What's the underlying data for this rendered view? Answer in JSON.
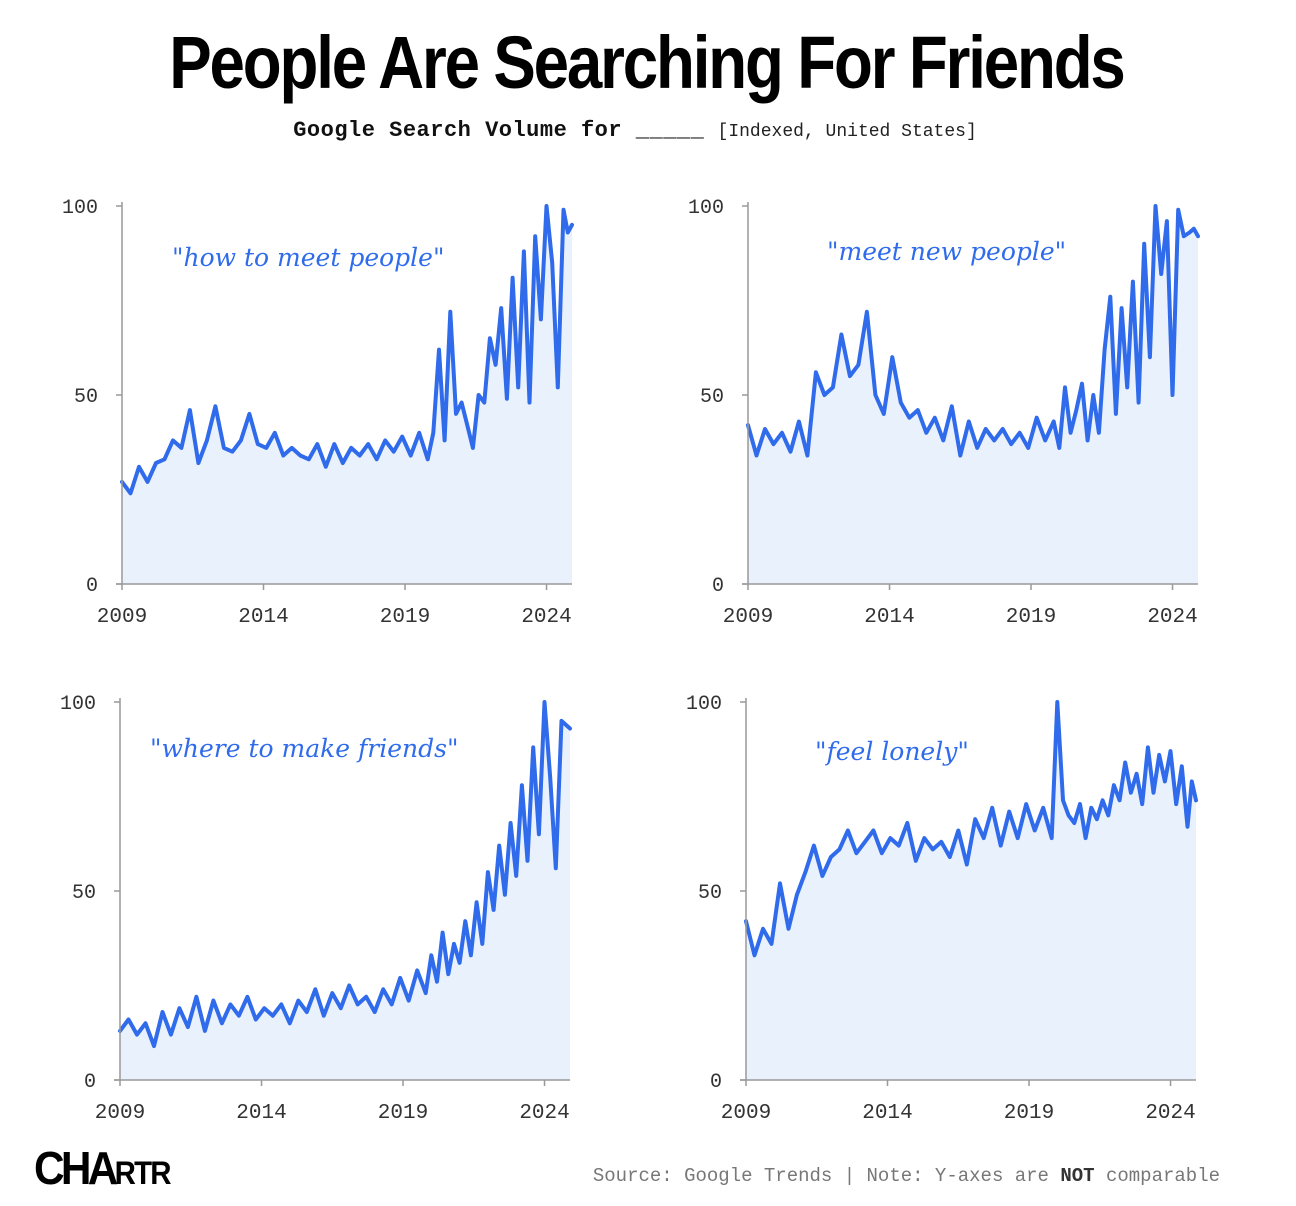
{
  "title": "People Are Searching For Friends",
  "subtitle": {
    "bold": "Google Search Volume for _____",
    "note": "[Indexed, United States]"
  },
  "footer": {
    "logo_big": "CHA",
    "logo_small": "RTR",
    "source_prefix": "Source: Google Trends | Note: Y-axes are ",
    "source_strong": "NOT",
    "source_suffix": " comparable"
  },
  "colors": {
    "line": "#2f6bea",
    "fill": "#e9f1fd",
    "axis": "#999999"
  },
  "chart_data": [
    {
      "type": "area",
      "label": "\"how to meet people\"",
      "xlim": [
        2009,
        2024.9
      ],
      "ylim": [
        0,
        100
      ],
      "xticks": [
        "2009",
        "2014",
        "2019",
        "2024"
      ],
      "yticks": [
        "0",
        "50",
        "100"
      ],
      "x": [
        2009,
        2009.3,
        2009.6,
        2009.9,
        2010.2,
        2010.5,
        2010.8,
        2011.1,
        2011.4,
        2011.7,
        2012.0,
        2012.3,
        2012.6,
        2012.9,
        2013.2,
        2013.5,
        2013.8,
        2014.1,
        2014.4,
        2014.7,
        2015.0,
        2015.3,
        2015.6,
        2015.9,
        2016.2,
        2016.5,
        2016.8,
        2017.1,
        2017.4,
        2017.7,
        2018.0,
        2018.3,
        2018.6,
        2018.9,
        2019.2,
        2019.5,
        2019.8,
        2020.0,
        2020.2,
        2020.4,
        2020.6,
        2020.8,
        2021.0,
        2021.2,
        2021.4,
        2021.6,
        2021.8,
        2022.0,
        2022.2,
        2022.4,
        2022.6,
        2022.8,
        2023.0,
        2023.2,
        2023.4,
        2023.6,
        2023.8,
        2024.0,
        2024.2,
        2024.4,
        2024.6,
        2024.75,
        2024.9
      ],
      "values": [
        27,
        24,
        31,
        27,
        32,
        33,
        38,
        36,
        46,
        32,
        38,
        47,
        36,
        35,
        38,
        45,
        37,
        36,
        40,
        34,
        36,
        34,
        33,
        37,
        31,
        37,
        32,
        36,
        34,
        37,
        33,
        38,
        35,
        39,
        34,
        40,
        33,
        40,
        62,
        38,
        72,
        45,
        48,
        42,
        36,
        50,
        48,
        65,
        58,
        73,
        49,
        81,
        52,
        88,
        48,
        92,
        70,
        100,
        85,
        52,
        99,
        93,
        95
      ]
    },
    {
      "type": "area",
      "label": "\"meet new people\"",
      "xlim": [
        2009,
        2024.9
      ],
      "ylim": [
        0,
        100
      ],
      "xticks": [
        "2009",
        "2014",
        "2019",
        "2024"
      ],
      "yticks": [
        "0",
        "50",
        "100"
      ],
      "x": [
        2009,
        2009.3,
        2009.6,
        2009.9,
        2010.2,
        2010.5,
        2010.8,
        2011.1,
        2011.4,
        2011.7,
        2012.0,
        2012.3,
        2012.6,
        2012.9,
        2013.2,
        2013.5,
        2013.8,
        2014.1,
        2014.4,
        2014.7,
        2015.0,
        2015.3,
        2015.6,
        2015.9,
        2016.2,
        2016.5,
        2016.8,
        2017.1,
        2017.4,
        2017.7,
        2018.0,
        2018.3,
        2018.6,
        2018.9,
        2019.2,
        2019.5,
        2019.8,
        2020.0,
        2020.2,
        2020.4,
        2020.6,
        2020.8,
        2021.0,
        2021.2,
        2021.4,
        2021.6,
        2021.8,
        2022.0,
        2022.2,
        2022.4,
        2022.6,
        2022.8,
        2023.0,
        2023.2,
        2023.4,
        2023.6,
        2023.8,
        2024.0,
        2024.2,
        2024.4,
        2024.6,
        2024.75,
        2024.9
      ],
      "values": [
        42,
        34,
        41,
        37,
        40,
        35,
        43,
        34,
        56,
        50,
        52,
        66,
        55,
        58,
        72,
        50,
        45,
        60,
        48,
        44,
        46,
        40,
        44,
        38,
        47,
        34,
        43,
        36,
        41,
        38,
        41,
        37,
        40,
        36,
        44,
        38,
        43,
        36,
        52,
        40,
        46,
        53,
        38,
        50,
        40,
        62,
        76,
        45,
        73,
        52,
        80,
        48,
        90,
        60,
        100,
        82,
        96,
        50,
        99,
        92,
        93,
        94,
        92
      ]
    },
    {
      "type": "area",
      "label": "\"where to make friends\"",
      "xlim": [
        2009,
        2024.9
      ],
      "ylim": [
        0,
        100
      ],
      "xticks": [
        "2009",
        "2014",
        "2019",
        "2024"
      ],
      "yticks": [
        "0",
        "50",
        "100"
      ],
      "x": [
        2009,
        2009.3,
        2009.6,
        2009.9,
        2010.2,
        2010.5,
        2010.8,
        2011.1,
        2011.4,
        2011.7,
        2012.0,
        2012.3,
        2012.6,
        2012.9,
        2013.2,
        2013.5,
        2013.8,
        2014.1,
        2014.4,
        2014.7,
        2015.0,
        2015.3,
        2015.6,
        2015.9,
        2016.2,
        2016.5,
        2016.8,
        2017.1,
        2017.4,
        2017.7,
        2018.0,
        2018.3,
        2018.6,
        2018.9,
        2019.2,
        2019.5,
        2019.8,
        2020.0,
        2020.2,
        2020.4,
        2020.6,
        2020.8,
        2021.0,
        2021.2,
        2021.4,
        2021.6,
        2021.8,
        2022.0,
        2022.2,
        2022.4,
        2022.6,
        2022.8,
        2023.0,
        2023.2,
        2023.4,
        2023.6,
        2023.8,
        2024.0,
        2024.2,
        2024.4,
        2024.6,
        2024.75,
        2024.9
      ],
      "values": [
        13,
        16,
        12,
        15,
        9,
        18,
        12,
        19,
        14,
        22,
        13,
        21,
        15,
        20,
        17,
        22,
        16,
        19,
        17,
        20,
        15,
        21,
        18,
        24,
        17,
        23,
        19,
        25,
        20,
        22,
        18,
        24,
        20,
        27,
        21,
        29,
        23,
        33,
        26,
        39,
        28,
        36,
        31,
        42,
        33,
        47,
        36,
        55,
        45,
        62,
        49,
        68,
        54,
        78,
        58,
        88,
        65,
        100,
        80,
        56,
        95,
        94,
        93
      ]
    },
    {
      "type": "area",
      "label": "\"feel lonely\"",
      "xlim": [
        2009,
        2024.9
      ],
      "ylim": [
        0,
        100
      ],
      "xticks": [
        "2009",
        "2014",
        "2019",
        "2024"
      ],
      "yticks": [
        "0",
        "50",
        "100"
      ],
      "x": [
        2009,
        2009.3,
        2009.6,
        2009.9,
        2010.2,
        2010.5,
        2010.8,
        2011.1,
        2011.4,
        2011.7,
        2012.0,
        2012.3,
        2012.6,
        2012.9,
        2013.2,
        2013.5,
        2013.8,
        2014.1,
        2014.4,
        2014.7,
        2015.0,
        2015.3,
        2015.6,
        2015.9,
        2016.2,
        2016.5,
        2016.8,
        2017.1,
        2017.4,
        2017.7,
        2018.0,
        2018.3,
        2018.6,
        2018.9,
        2019.2,
        2019.5,
        2019.8,
        2020.0,
        2020.2,
        2020.4,
        2020.6,
        2020.8,
        2021.0,
        2021.2,
        2021.4,
        2021.6,
        2021.8,
        2022.0,
        2022.2,
        2022.4,
        2022.6,
        2022.8,
        2023.0,
        2023.2,
        2023.4,
        2023.6,
        2023.8,
        2024.0,
        2024.2,
        2024.4,
        2024.6,
        2024.75,
        2024.9
      ],
      "values": [
        42,
        33,
        40,
        36,
        52,
        40,
        49,
        55,
        62,
        54,
        59,
        61,
        66,
        60,
        63,
        66,
        60,
        64,
        62,
        68,
        58,
        64,
        61,
        63,
        59,
        66,
        57,
        69,
        64,
        72,
        62,
        71,
        64,
        73,
        66,
        72,
        64,
        100,
        74,
        70,
        68,
        73,
        64,
        72,
        69,
        74,
        70,
        78,
        74,
        84,
        76,
        81,
        73,
        88,
        76,
        86,
        79,
        87,
        73,
        83,
        67,
        79,
        74
      ]
    }
  ]
}
